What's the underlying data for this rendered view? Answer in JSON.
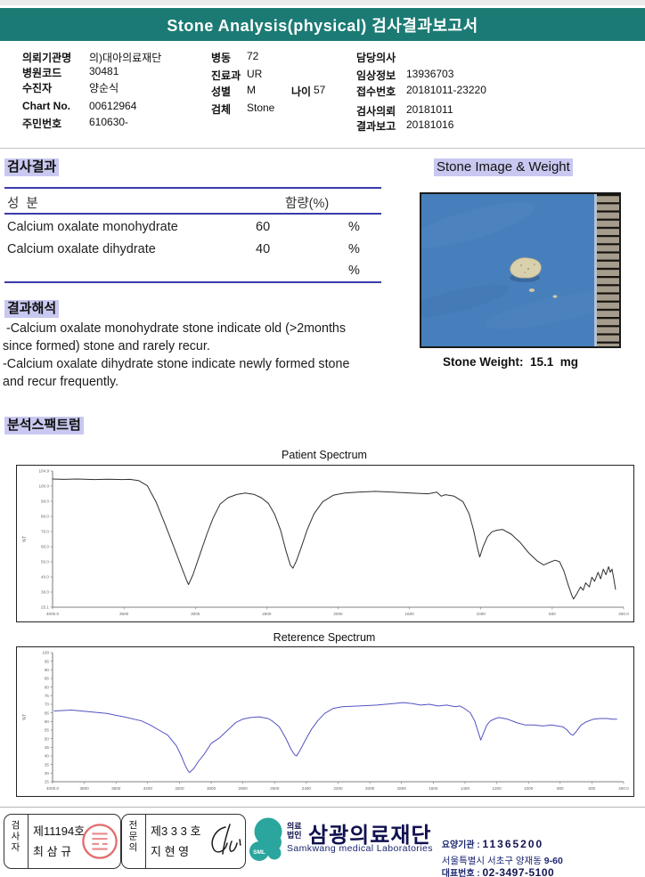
{
  "header": {
    "title": "Stone Analysis(physical) 검사결과보고서",
    "bar_color": "#1b7b74"
  },
  "patient_info": {
    "col1": [
      {
        "label": "의뢰기관명",
        "value": "의)대아의료재단"
      },
      {
        "label": "병원코드",
        "value": "30481"
      },
      {
        "label": "수진자",
        "value": "양순식"
      },
      {
        "label": "Chart No.",
        "value": "00612964"
      },
      {
        "label": "주민번호",
        "value": "610630-"
      }
    ],
    "col2": [
      {
        "label": "병동",
        "value": "72"
      },
      {
        "label": "진료과",
        "value": "UR"
      },
      {
        "label": "성별",
        "value": "M",
        "label2": "나이",
        "value2": "57"
      },
      {
        "label": "검체",
        "value": "Stone"
      }
    ],
    "col3": [
      {
        "label": "담당의사",
        "value": ""
      },
      {
        "label": "임상정보",
        "value": "13936703"
      },
      {
        "label": "접수번호",
        "value": "20181011-23220"
      },
      {
        "label": "검사의뢰",
        "value": "20181011"
      },
      {
        "label": "결과보고",
        "value": "20181016"
      }
    ]
  },
  "results": {
    "section_title": "검사결과",
    "col_component": "성  분",
    "col_content": "함량(%)",
    "rows": [
      {
        "component": "Calcium oxalate monohydrate",
        "value": "60",
        "unit": "%"
      },
      {
        "component": "Calcium oxalate dihydrate",
        "value": "40",
        "unit": "%"
      },
      {
        "component": "",
        "value": "",
        "unit": "%"
      }
    ]
  },
  "stone_image": {
    "section_title": "Stone Image & Weight",
    "weight_label": "Stone Weight:  15.1  mg"
  },
  "interpretation": {
    "section_title": "결과해석",
    "lines": [
      " -Calcium oxalate monohydrate stone indicate old (>2months",
      "since formed) stone and rarely recur.",
      "-Calcium oxalate dihydrate stone indicate newly formed stone",
      "and recur frequently."
    ]
  },
  "spectrum_section_title": "분석스팩트럼",
  "chart_data": [
    {
      "type": "line",
      "title": "Patient Spectrum",
      "color": "#2f2f2f",
      "y_label": "%T",
      "x_range": [
        4000,
        400
      ],
      "y_range": [
        25,
        105
      ],
      "x_ticks": [
        "4000.0",
        "3500",
        "3000",
        "2500",
        "2000",
        "1500",
        "1000",
        "500",
        "400.0"
      ],
      "y_ticks": [
        "104.9",
        "100.0",
        "90.0",
        "80.0",
        "70.0",
        "60.0",
        "50.0",
        "40.0",
        "30.0",
        "25.1"
      ],
      "points": [
        [
          4000,
          100.3
        ],
        [
          3930,
          100.1
        ],
        [
          3845,
          100.3
        ],
        [
          3735,
          100
        ],
        [
          3650,
          100.2
        ],
        [
          3560,
          100
        ],
        [
          3513,
          100.1
        ],
        [
          3458,
          99.4
        ],
        [
          3403,
          96.4
        ],
        [
          3348,
          86.9
        ],
        [
          3292,
          74
        ],
        [
          3237,
          60.7
        ],
        [
          3182,
          47.4
        ],
        [
          3154,
          40.7
        ],
        [
          3143,
          38.3
        ],
        [
          3115,
          44.1
        ],
        [
          3071,
          56
        ],
        [
          3027,
          67.9
        ],
        [
          2988,
          77.4
        ],
        [
          2944,
          85.5
        ],
        [
          2894,
          89.3
        ],
        [
          2839,
          91.2
        ],
        [
          2784,
          92.1
        ],
        [
          2728,
          91.2
        ],
        [
          2684,
          89.3
        ],
        [
          2640,
          86
        ],
        [
          2601,
          79.8
        ],
        [
          2562,
          70.2
        ],
        [
          2529,
          58.3
        ],
        [
          2501,
          49.8
        ],
        [
          2485,
          47.9
        ],
        [
          2463,
          52.2
        ],
        [
          2430,
          60.7
        ],
        [
          2396,
          70.2
        ],
        [
          2352,
          79.8
        ],
        [
          2297,
          86.9
        ],
        [
          2231,
          90.7
        ],
        [
          2159,
          92.1
        ],
        [
          2076,
          92.6
        ],
        [
          1965,
          93
        ],
        [
          1855,
          92.6
        ],
        [
          1744,
          92.1
        ],
        [
          1633,
          91.6
        ],
        [
          1578,
          92.6
        ],
        [
          1550,
          90.2
        ],
        [
          1523,
          91.1
        ],
        [
          1468,
          90.2
        ],
        [
          1412,
          86.9
        ],
        [
          1374,
          79.8
        ],
        [
          1346,
          70.2
        ],
        [
          1324,
          60.7
        ],
        [
          1307,
          54.5
        ],
        [
          1285,
          60.7
        ],
        [
          1258,
          66.4
        ],
        [
          1230,
          69.3
        ],
        [
          1202,
          70.2
        ],
        [
          1164,
          70.7
        ],
        [
          1108,
          67.9
        ],
        [
          1053,
          63.1
        ],
        [
          998,
          56.9
        ],
        [
          943,
          52.1
        ],
        [
          904,
          49.8
        ],
        [
          871,
          51.2
        ],
        [
          832,
          52.6
        ],
        [
          804,
          51.7
        ],
        [
          777,
          46.4
        ],
        [
          749,
          37.9
        ],
        [
          727,
          32.1
        ],
        [
          716,
          29.8
        ],
        [
          694,
          33.1
        ],
        [
          672,
          36.9
        ],
        [
          655,
          35
        ],
        [
          639,
          39.3
        ],
        [
          616,
          36.9
        ],
        [
          600,
          42.6
        ],
        [
          583,
          40.2
        ],
        [
          561,
          45.5
        ],
        [
          545,
          41.7
        ],
        [
          528,
          47.4
        ],
        [
          511,
          44.1
        ],
        [
          495,
          48.8
        ],
        [
          484,
          45.5
        ],
        [
          473,
          47.4
        ],
        [
          462,
          41.7
        ],
        [
          451,
          35.5
        ]
      ]
    },
    {
      "type": "line",
      "title": "Reterence Spectrum",
      "color": "#5252c2",
      "y_label": "%T",
      "x_range": [
        4000,
        400
      ],
      "y_range": [
        0,
        100
      ],
      "x_ticks": [
        "4000.0",
        "3800",
        "3600",
        "3400",
        "3200",
        "3000",
        "2800",
        "2600",
        "2400",
        "2200",
        "2000",
        "1800",
        "1600",
        "1400",
        "1200",
        "1000",
        "800",
        "600",
        "400.0"
      ],
      "y_ticks": [
        "100",
        "95",
        "90",
        "85",
        "80",
        "75",
        "70",
        "65",
        "60",
        "55",
        "50",
        "45",
        "40",
        "35",
        "30",
        "25"
      ],
      "points": [
        [
          3989,
          54.8
        ],
        [
          3879,
          55.5
        ],
        [
          3769,
          54.2
        ],
        [
          3659,
          52.9
        ],
        [
          3549,
          50.3
        ],
        [
          3439,
          47.1
        ],
        [
          3384,
          43.9
        ],
        [
          3329,
          40
        ],
        [
          3274,
          36.1
        ],
        [
          3219,
          27.7
        ],
        [
          3186,
          19.4
        ],
        [
          3165,
          12.9
        ],
        [
          3148,
          9
        ],
        [
          3137,
          7.1
        ],
        [
          3110,
          10.3
        ],
        [
          3082,
          15.5
        ],
        [
          3044,
          21.3
        ],
        [
          3000,
          29.7
        ],
        [
          2945,
          34.2
        ],
        [
          2890,
          40.6
        ],
        [
          2846,
          45.8
        ],
        [
          2802,
          48.4
        ],
        [
          2752,
          49.7
        ],
        [
          2697,
          50.3
        ],
        [
          2642,
          49
        ],
        [
          2615,
          47.1
        ],
        [
          2571,
          42.6
        ],
        [
          2532,
          34.2
        ],
        [
          2494,
          24.5
        ],
        [
          2472,
          20.6
        ],
        [
          2461,
          20
        ],
        [
          2439,
          24.5
        ],
        [
          2406,
          32.3
        ],
        [
          2368,
          40.6
        ],
        [
          2329,
          47.1
        ],
        [
          2285,
          52.9
        ],
        [
          2230,
          56.8
        ],
        [
          2175,
          58.1
        ],
        [
          2065,
          58.7
        ],
        [
          1955,
          59.4
        ],
        [
          1845,
          60.6
        ],
        [
          1790,
          61.3
        ],
        [
          1735,
          60.6
        ],
        [
          1680,
          59.4
        ],
        [
          1625,
          60
        ],
        [
          1570,
          58.7
        ],
        [
          1515,
          59.4
        ],
        [
          1460,
          58.1
        ],
        [
          1433,
          58.7
        ],
        [
          1405,
          56.8
        ],
        [
          1367,
          53.5
        ],
        [
          1339,
          47.1
        ],
        [
          1317,
          38.7
        ],
        [
          1301,
          32.3
        ],
        [
          1284,
          37.4
        ],
        [
          1262,
          43.9
        ],
        [
          1240,
          47.1
        ],
        [
          1207,
          49
        ],
        [
          1185,
          49.7
        ],
        [
          1130,
          48.4
        ],
        [
          1075,
          45.8
        ],
        [
          1020,
          43.9
        ],
        [
          965,
          43.9
        ],
        [
          910,
          43.2
        ],
        [
          855,
          43.9
        ],
        [
          817,
          43.2
        ],
        [
          784,
          42.6
        ],
        [
          756,
          40
        ],
        [
          734,
          36.8
        ],
        [
          718,
          36.1
        ],
        [
          696,
          39.4
        ],
        [
          668,
          43.9
        ],
        [
          635,
          46.5
        ],
        [
          591,
          48.4
        ],
        [
          547,
          49
        ],
        [
          503,
          49
        ],
        [
          470,
          48.4
        ],
        [
          443,
          48.4
        ]
      ]
    }
  ],
  "footer": {
    "examiner": {
      "role": "검사자",
      "cert": "제11194호",
      "name": "최 삼 규"
    },
    "specialist": {
      "role": "전문의",
      "cert": "제3 3 3 호",
      "name": "지 현 영"
    },
    "logo_text": "SML",
    "org_small": "의료\n법인",
    "org_name": "삼광의료재단",
    "org_eng": "Samkwang medical Laboratories",
    "info1_label": "요양기관 : ",
    "info1_value": "11365200",
    "addr": "서울특별시 서초구 양재동 ",
    "addr_num": "9-60",
    "info3_label": "대표번호 : ",
    "info3_value": "02-3497-5100"
  }
}
